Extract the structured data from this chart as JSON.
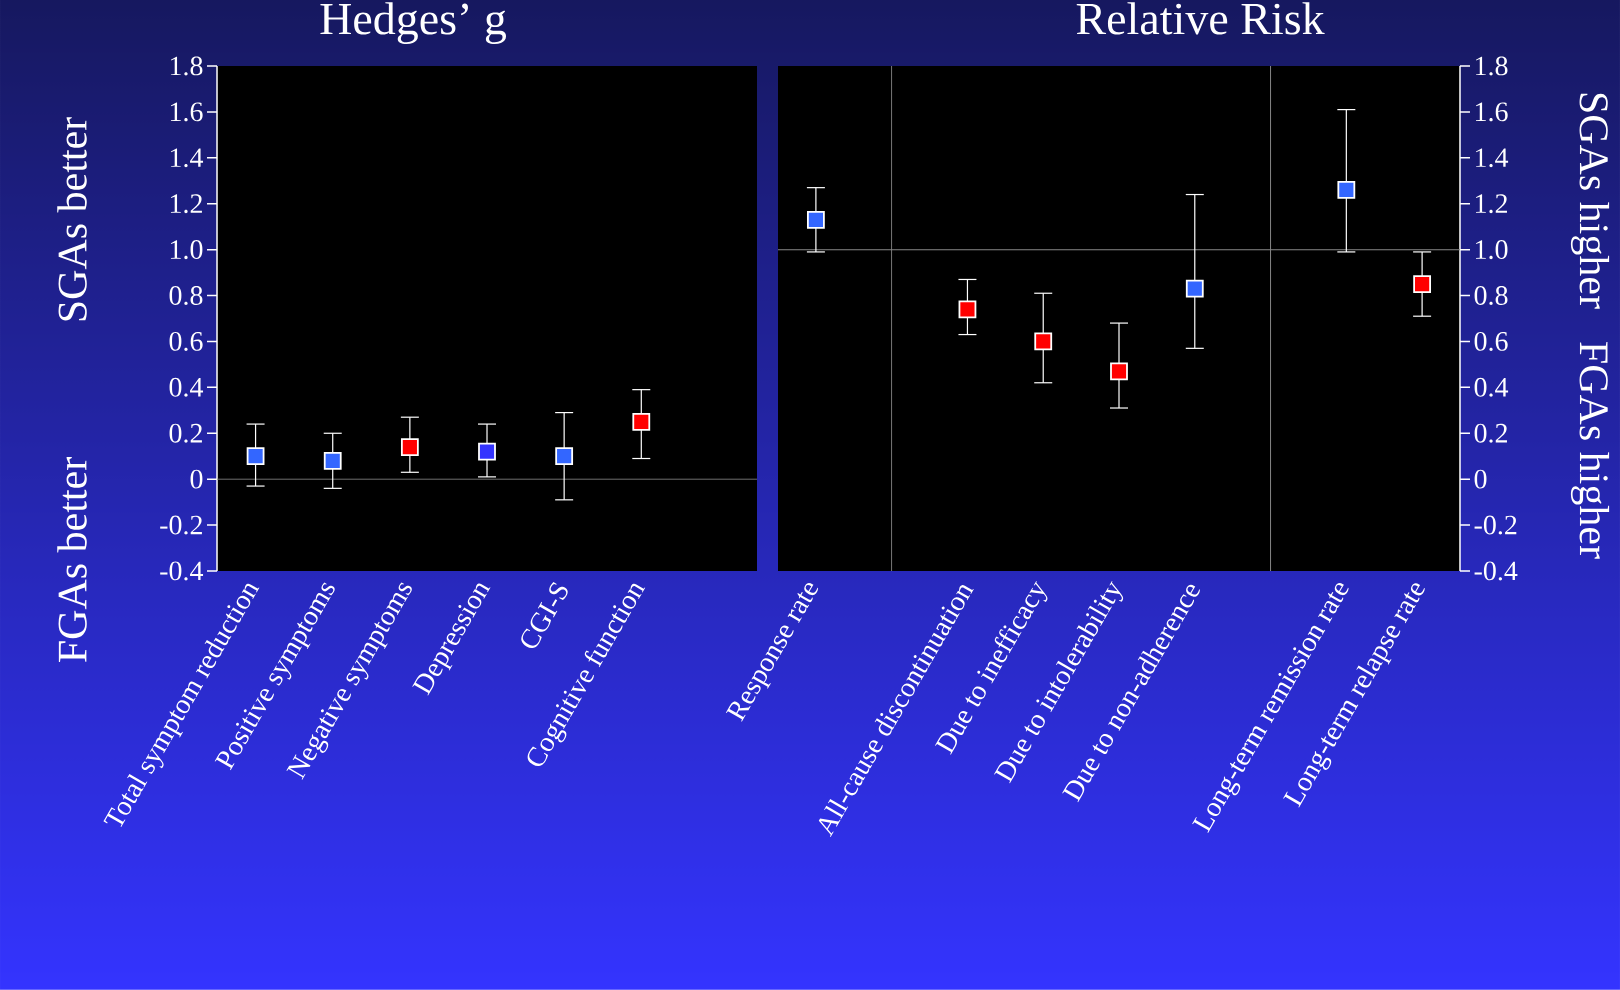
{
  "chart_data": [
    {
      "type": "scatter",
      "title": "Hedges’ g",
      "marker": "square",
      "categories": [
        "Total symptom reduction",
        "Positive symptoms",
        "Negative symptoms",
        "Depression",
        "CGI-S",
        "Cognitive function",
        null
      ],
      "values": [
        0.1,
        0.08,
        0.14,
        0.12,
        0.1,
        0.25,
        null
      ],
      "colors": [
        "#3366ff",
        "#3366ff",
        "#ff0000",
        "#3333ff",
        "#3366ff",
        "#ff0000",
        null
      ],
      "errors": [
        [
          -0.03,
          0.24
        ],
        [
          -0.04,
          0.2
        ],
        [
          0.03,
          0.27
        ],
        [
          0.01,
          0.24
        ],
        [
          -0.09,
          0.29
        ],
        [
          0.09,
          0.39
        ],
        null
      ],
      "ylim": [
        -0.4,
        1.8
      ],
      "yticks": [
        -0.4,
        -0.2,
        0,
        0.2,
        0.4,
        0.6,
        0.8,
        {
          "value": 1.0,
          "label": "1.0"
        },
        1.2,
        1.4,
        1.6,
        1.8
      ],
      "ref_lines": [
        {
          "axis": "y",
          "value": 0,
          "color": "#888888"
        }
      ],
      "annotations": [
        "FGAs better",
        "SGAs better"
      ]
    },
    {
      "type": "scatter",
      "title": "Relative Risk",
      "marker": "square",
      "categories": [
        "Response rate",
        null,
        "All-cause discontinuation",
        "Due to inefficacy",
        "Due to intolerability",
        "Due to non-adherence",
        null,
        "Long-term remission rate",
        "Long-term relapse rate"
      ],
      "values": [
        1.13,
        null,
        0.74,
        0.6,
        0.47,
        0.83,
        null,
        1.26,
        0.85
      ],
      "colors": [
        "#3366ff",
        null,
        "#ff0000",
        "#ff0000",
        "#ff0000",
        "#3366ff",
        null,
        "#3366ff",
        "#ff0000"
      ],
      "errors": [
        [
          0.99,
          1.27
        ],
        null,
        [
          0.63,
          0.87
        ],
        [
          0.42,
          0.81
        ],
        [
          0.31,
          0.68
        ],
        [
          0.57,
          1.24
        ],
        null,
        [
          0.99,
          1.61
        ],
        [
          0.71,
          0.99
        ]
      ],
      "ylim": [
        -0.4,
        1.8
      ],
      "yticks": [
        -0.4,
        -0.2,
        0,
        0.2,
        0.4,
        0.6,
        0.8,
        {
          "value": 1.0,
          "label": "1.0"
        },
        1.2,
        1.4,
        1.6,
        1.8
      ],
      "ref_lines": [
        {
          "axis": "y",
          "value": 1.0,
          "color": "#888888"
        }
      ],
      "annotations": [
        "SGAs higher",
        "FGAs higher"
      ]
    }
  ]
}
